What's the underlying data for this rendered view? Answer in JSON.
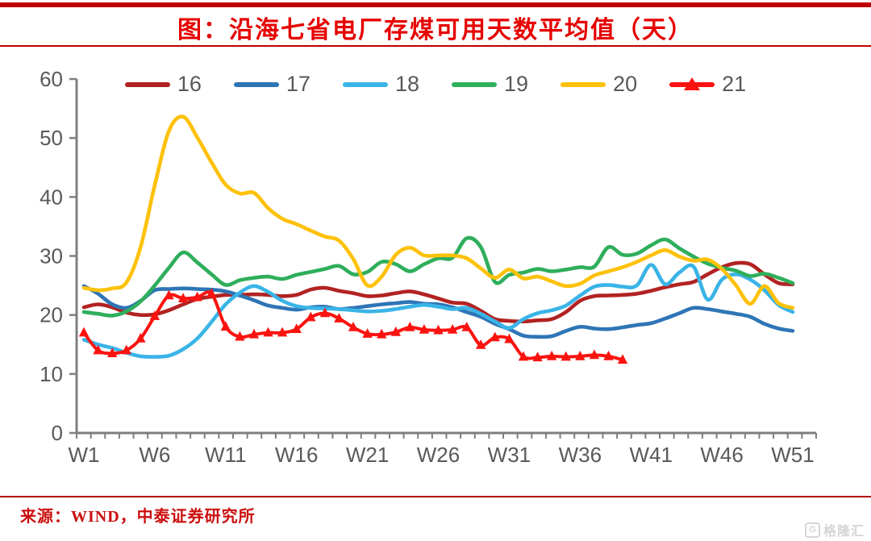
{
  "page": {
    "title": "图：沿海七省电厂存煤可用天数平均值（天）",
    "source": "来源：WIND，中泰证券研究所",
    "watermark_icon": "G",
    "watermark_text": "格隆汇",
    "accent_color": "#c00000",
    "title_color": "#e60000"
  },
  "chart_data": {
    "type": "line",
    "title": "图：沿海七省电厂存煤可用天数平均值（天）",
    "xlabel": "",
    "ylabel": "",
    "ylim": [
      0,
      60
    ],
    "y_ticks": [
      0,
      10,
      20,
      30,
      40,
      50,
      60
    ],
    "x_tick_labels": [
      "W1",
      "W6",
      "W11",
      "W16",
      "W21",
      "W26",
      "W31",
      "W36",
      "W41",
      "W46",
      "W51"
    ],
    "weeks_total": 51,
    "grid": false,
    "legend_position": "top",
    "axis_color": "#7f7f7f",
    "tick_label_color": "#595959",
    "series": [
      {
        "name": "16",
        "color": "#b22222",
        "marker": "none",
        "values": [
          21.3,
          21.8,
          21.3,
          20.4,
          20.0,
          20.1,
          20.8,
          21.8,
          22.7,
          23.1,
          23.4,
          23.4,
          23.5,
          23.4,
          23.2,
          23.4,
          24.3,
          24.6,
          24.1,
          23.7,
          23.2,
          23.3,
          23.7,
          24.0,
          23.5,
          22.8,
          22.1,
          21.9,
          20.7,
          19.3,
          19.0,
          18.9,
          19.1,
          19.3,
          20.5,
          22.4,
          23.2,
          23.3,
          23.4,
          23.6,
          24.1,
          24.7,
          25.2,
          25.6,
          26.9,
          28.1,
          28.8,
          28.6,
          26.9,
          25.4,
          25.2
        ]
      },
      {
        "name": "17",
        "color": "#2e75b6",
        "marker": "none",
        "values": [
          24.9,
          23.6,
          21.8,
          21.2,
          22.4,
          24.2,
          24.4,
          24.5,
          24.4,
          24.3,
          24.0,
          23.3,
          22.5,
          21.6,
          21.2,
          20.9,
          21.3,
          21.4,
          21.0,
          21.2,
          21.5,
          21.8,
          22.0,
          22.2,
          21.9,
          21.8,
          21.3,
          20.5,
          19.7,
          18.5,
          17.6,
          16.5,
          16.3,
          16.4,
          17.3,
          18.0,
          17.7,
          17.6,
          17.9,
          18.3,
          18.6,
          19.4,
          20.3,
          21.2,
          21.0,
          20.6,
          20.2,
          19.7,
          18.5,
          17.7,
          17.3
        ]
      },
      {
        "name": "18",
        "color": "#3ab4e7",
        "marker": "none",
        "values": [
          15.8,
          15.0,
          14.4,
          13.6,
          13.0,
          12.9,
          13.1,
          14.2,
          16.0,
          18.8,
          21.8,
          23.8,
          24.9,
          23.9,
          22.4,
          21.5,
          21.2,
          21.1,
          21.0,
          20.8,
          20.6,
          20.7,
          21.0,
          21.4,
          21.7,
          21.4,
          21.0,
          21.2,
          20.2,
          18.9,
          17.8,
          19.3,
          20.3,
          20.8,
          21.6,
          23.3,
          24.8,
          25.1,
          24.8,
          25.0,
          28.5,
          25.2,
          27.2,
          28.2,
          22.6,
          26.0,
          26.9,
          26.0,
          24.2,
          21.7,
          20.5
        ]
      },
      {
        "name": "19",
        "color": "#2fae5b",
        "marker": "none",
        "values": [
          20.5,
          20.2,
          19.9,
          20.6,
          22.3,
          25.0,
          28.0,
          30.6,
          28.9,
          26.9,
          25.1,
          25.9,
          26.3,
          26.5,
          26.1,
          26.8,
          27.3,
          27.8,
          28.3,
          26.9,
          27.3,
          29.0,
          28.6,
          27.4,
          28.6,
          29.6,
          29.7,
          33.0,
          31.5,
          25.6,
          26.8,
          27.2,
          27.8,
          27.4,
          27.7,
          28.1,
          28.2,
          31.5,
          30.2,
          30.4,
          31.8,
          32.8,
          31.3,
          29.9,
          28.7,
          28.0,
          27.5,
          26.6,
          27.0,
          26.3,
          25.4
        ]
      },
      {
        "name": "20",
        "color": "#fdc109",
        "marker": "none",
        "values": [
          24.6,
          24.2,
          24.5,
          25.5,
          31.5,
          42.0,
          51.2,
          53.6,
          50.1,
          45.9,
          42.1,
          40.6,
          40.7,
          38.1,
          36.3,
          35.4,
          34.3,
          33.3,
          32.6,
          29.5,
          25.0,
          26.5,
          30.2,
          31.4,
          30.1,
          30.1,
          30.1,
          29.6,
          27.9,
          26.3,
          27.7,
          26.2,
          26.5,
          25.7,
          24.9,
          25.3,
          26.7,
          27.4,
          28.1,
          29.0,
          30.1,
          31.0,
          29.9,
          29.2,
          29.4,
          27.8,
          25.0,
          21.9,
          24.9,
          22.0,
          21.2
        ]
      },
      {
        "name": "21",
        "color": "#fb1310",
        "marker": "triangle",
        "values": [
          17.0,
          14.0,
          13.5,
          14.0,
          16.0,
          19.8,
          23.3,
          22.8,
          23.0,
          23.6,
          18.0,
          16.3,
          16.7,
          17.0,
          17.0,
          17.6,
          19.6,
          20.3,
          19.4,
          17.9,
          16.8,
          16.7,
          17.1,
          17.9,
          17.5,
          17.4,
          17.5,
          17.9,
          14.9,
          16.2,
          15.9,
          12.9,
          12.8,
          13.0,
          12.9,
          13.0,
          13.2,
          13.0,
          12.4
        ]
      }
    ]
  }
}
